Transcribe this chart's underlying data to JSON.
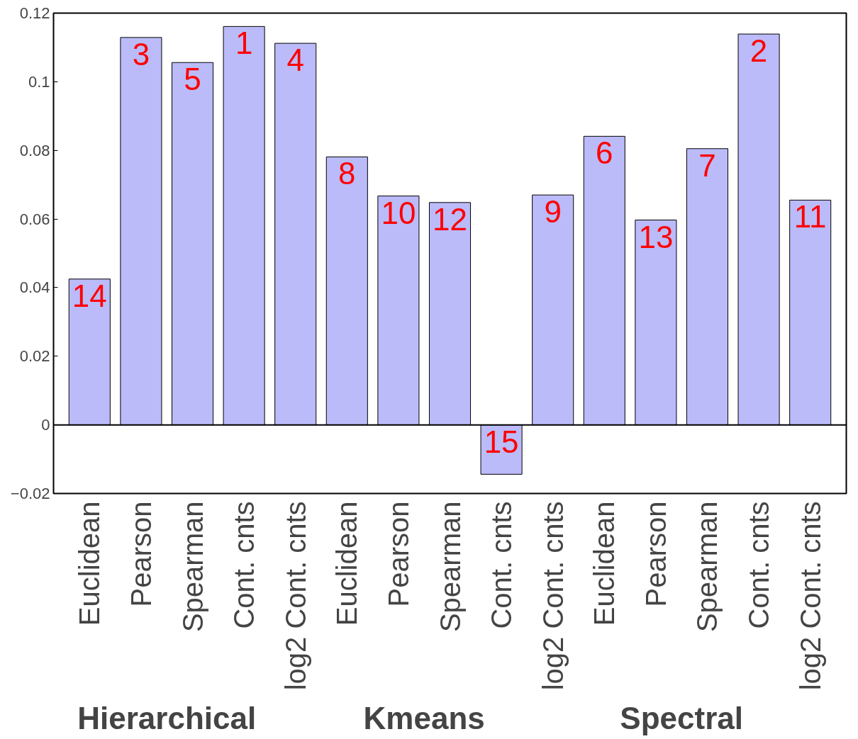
{
  "chart_data": {
    "type": "bar",
    "categories": [
      "Euclidean",
      "Pearson",
      "Spearman",
      "Cont. cnts",
      "log2 Cont. cnts",
      "Euclidean",
      "Pearson",
      "Spearman",
      "Cont. cnts",
      "log2 Cont. cnts",
      "Euclidean",
      "Pearson",
      "Spearman",
      "Cont. cnts",
      "log2 Cont. cnts"
    ],
    "values": [
      0.0425,
      0.1129,
      0.1056,
      0.1161,
      0.1112,
      0.0781,
      0.0667,
      0.0648,
      -0.0144,
      0.067,
      0.0841,
      0.0597,
      0.0805,
      0.1139,
      0.0655
    ],
    "color": "#bbbbf9",
    "ylim": [
      -0.02,
      0.12
    ],
    "yticks": [
      -0.02,
      0,
      0.02,
      0.04,
      0.06,
      0.08,
      0.1,
      0.12
    ],
    "ref_lines": [
      {
        "axis": "y",
        "value": 0,
        "color": "#000000"
      }
    ],
    "annotations": [
      "Hierarchical",
      "Kmeans",
      "Spectral",
      "14",
      "3",
      "5",
      "1",
      "4",
      "8",
      "10",
      "12",
      "15",
      "9",
      "6",
      "13",
      "7",
      "2",
      "11"
    ],
    "grid": false
  }
}
